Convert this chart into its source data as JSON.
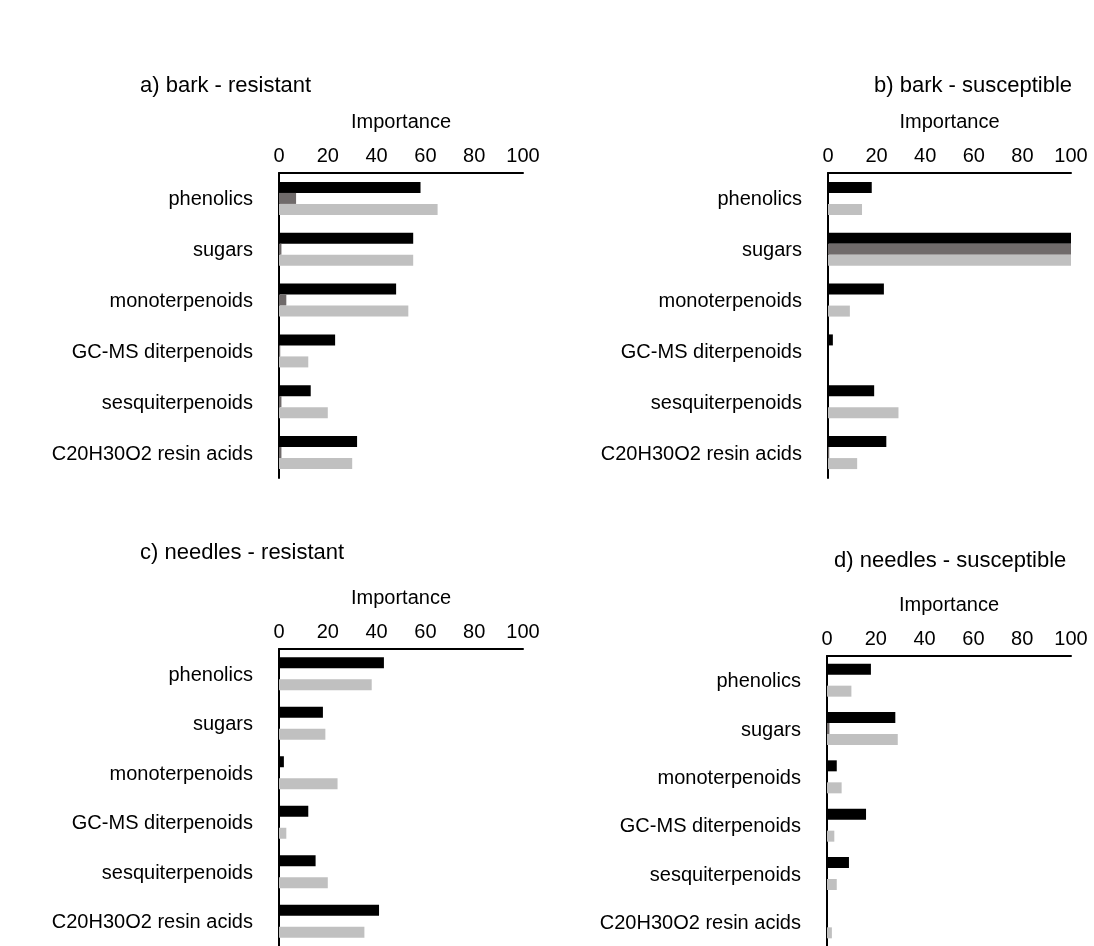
{
  "chart_data": [
    {
      "type": "bar",
      "orientation": "horizontal",
      "title": "a) bark - resistant",
      "xlabel": "Importance",
      "categories": [
        "phenolics",
        "sugars",
        "monoterpenoids",
        "GC-MS diterpenoids",
        "sesquiterpenoids",
        "C20H30O2 resin acids"
      ],
      "xlim": [
        0,
        100
      ],
      "xticks": [
        0,
        20,
        40,
        60,
        80,
        100
      ],
      "grid": false,
      "series": [
        {
          "color": "#000000",
          "values": [
            58,
            55,
            48,
            23,
            13,
            32
          ]
        },
        {
          "color": "#706b6b",
          "values": [
            7,
            1,
            3,
            0.5,
            1,
            1
          ]
        },
        {
          "color": "#c0c0c0",
          "values": [
            65,
            55,
            53,
            12,
            20,
            30
          ]
        }
      ]
    },
    {
      "type": "bar",
      "orientation": "horizontal",
      "title": "b) bark - susceptible",
      "xlabel": "Importance",
      "categories": [
        "phenolics",
        "sugars",
        "monoterpenoids",
        "GC-MS diterpenoids",
        "sesquiterpenoids",
        "C20H30O2 resin acids"
      ],
      "xlim": [
        0,
        100
      ],
      "xticks": [
        0,
        20,
        40,
        60,
        80,
        100
      ],
      "grid": false,
      "series": [
        {
          "color": "#000000",
          "values": [
            18,
            100,
            23,
            2,
            19,
            24
          ]
        },
        {
          "color": "#706b6b",
          "values": [
            0,
            100,
            0,
            0,
            0,
            0.5
          ]
        },
        {
          "color": "#c0c0c0",
          "values": [
            14,
            100,
            9,
            0,
            29,
            12
          ]
        }
      ]
    },
    {
      "type": "bar",
      "orientation": "horizontal",
      "title": "c) needles - resistant",
      "xlabel": "Importance",
      "categories": [
        "phenolics",
        "sugars",
        "monoterpenoids",
        "GC-MS diterpenoids",
        "sesquiterpenoids",
        "C20H30O2 resin acids"
      ],
      "xlim": [
        0,
        100
      ],
      "xticks": [
        0,
        20,
        40,
        60,
        80,
        100
      ],
      "grid": false,
      "series": [
        {
          "color": "#000000",
          "values": [
            43,
            18,
            2,
            12,
            15,
            41
          ]
        },
        {
          "color": "#706b6b",
          "values": [
            0,
            0,
            0,
            0,
            0,
            0
          ]
        },
        {
          "color": "#c0c0c0",
          "values": [
            38,
            19,
            24,
            3,
            20,
            35
          ]
        }
      ]
    },
    {
      "type": "bar",
      "orientation": "horizontal",
      "title": "d) needles - susceptible",
      "xlabel": "Importance",
      "categories": [
        "phenolics",
        "sugars",
        "monoterpenoids",
        "GC-MS diterpenoids",
        "sesquiterpenoids",
        "C20H30O2 resin acids"
      ],
      "xlim": [
        0,
        100
      ],
      "xticks": [
        0,
        20,
        40,
        60,
        80,
        100
      ],
      "grid": false,
      "series": [
        {
          "color": "#000000",
          "values": [
            18,
            28,
            4,
            16,
            9,
            0
          ]
        },
        {
          "color": "#706b6b",
          "values": [
            0,
            1,
            0,
            0,
            0,
            0
          ]
        },
        {
          "color": "#c0c0c0",
          "values": [
            10,
            29,
            6,
            3,
            4,
            2
          ]
        }
      ]
    }
  ]
}
